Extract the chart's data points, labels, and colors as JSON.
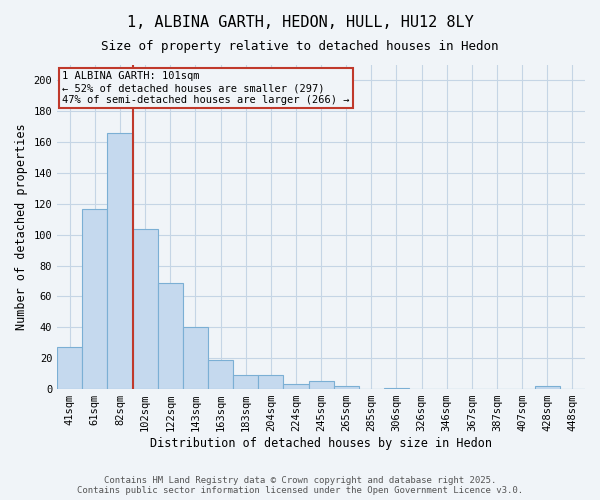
{
  "title1": "1, ALBINA GARTH, HEDON, HULL, HU12 8LY",
  "title2": "Size of property relative to detached houses in Hedon",
  "xlabel": "Distribution of detached houses by size in Hedon",
  "ylabel": "Number of detached properties",
  "categories": [
    "41sqm",
    "61sqm",
    "82sqm",
    "102sqm",
    "122sqm",
    "143sqm",
    "163sqm",
    "183sqm",
    "204sqm",
    "224sqm",
    "245sqm",
    "265sqm",
    "285sqm",
    "306sqm",
    "326sqm",
    "346sqm",
    "367sqm",
    "387sqm",
    "407sqm",
    "428sqm",
    "448sqm"
  ],
  "values": [
    27,
    117,
    166,
    104,
    69,
    40,
    19,
    9,
    9,
    3,
    5,
    2,
    0,
    1,
    0,
    0,
    0,
    0,
    0,
    2,
    0
  ],
  "bar_color": "#c5d9ee",
  "bar_edge_color": "#7bafd4",
  "property_line_color": "#c0392b",
  "property_line_x": 2.5,
  "annotation_text": "1 ALBINA GARTH: 101sqm\n← 52% of detached houses are smaller (297)\n47% of semi-detached houses are larger (266) →",
  "annotation_box_color": "#c0392b",
  "ylim": [
    0,
    210
  ],
  "yticks": [
    0,
    20,
    40,
    60,
    80,
    100,
    120,
    140,
    160,
    180,
    200
  ],
  "footnote1": "Contains HM Land Registry data © Crown copyright and database right 2025.",
  "footnote2": "Contains public sector information licensed under the Open Government Licence v3.0.",
  "bg_color": "#f0f4f8",
  "grid_color": "#c5d5e5",
  "title_fontsize": 11,
  "subtitle_fontsize": 9,
  "tick_fontsize": 7.5,
  "label_fontsize": 8.5
}
